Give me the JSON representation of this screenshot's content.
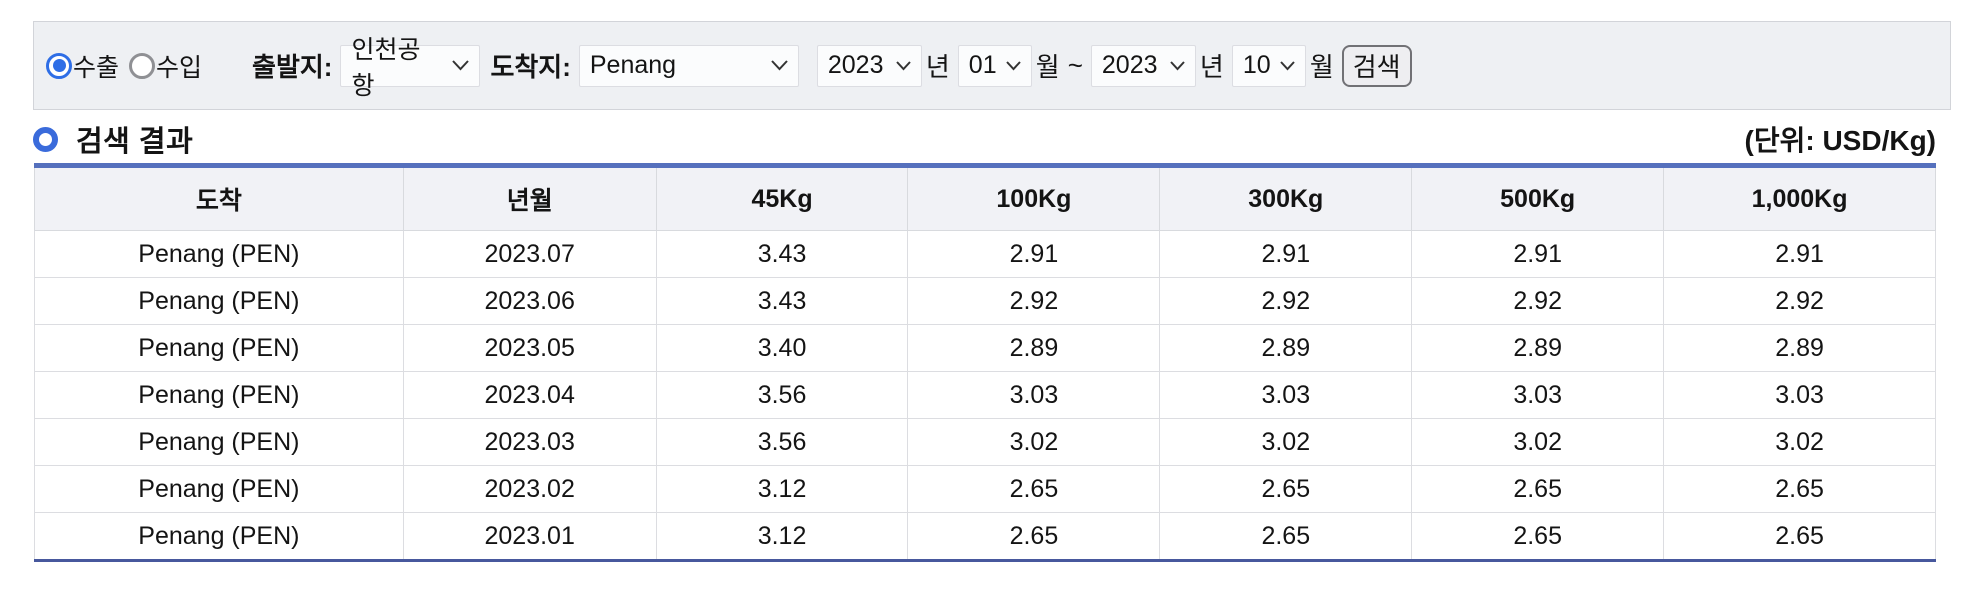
{
  "filters": {
    "trade_options": {
      "export_label": "수출",
      "import_label": "수입",
      "selected": "수출"
    },
    "origin": {
      "label": "출발지:",
      "value": "인천공항"
    },
    "destination": {
      "label": "도착지:",
      "value": "Penang"
    },
    "period": {
      "from_year": "2023",
      "from_month": "01",
      "to_year": "2023",
      "to_month": "10",
      "year_suffix": "년",
      "month_suffix": "월",
      "range_separator": "~"
    },
    "search_button_label": "검색"
  },
  "results_section": {
    "title": "검색 결과",
    "unit_label": "(단위: USD/Kg)"
  },
  "table": {
    "headers": [
      "도착",
      "년월",
      "45Kg",
      "100Kg",
      "300Kg",
      "500Kg",
      "1,000Kg"
    ],
    "col_widths_pct": [
      19.4,
      13.3,
      13.25,
      13.25,
      13.25,
      13.25,
      14.3
    ],
    "rows": [
      [
        "Penang (PEN)",
        "2023.07",
        "3.43",
        "2.91",
        "2.91",
        "2.91",
        "2.91"
      ],
      [
        "Penang (PEN)",
        "2023.06",
        "3.43",
        "2.92",
        "2.92",
        "2.92",
        "2.92"
      ],
      [
        "Penang (PEN)",
        "2023.05",
        "3.40",
        "2.89",
        "2.89",
        "2.89",
        "2.89"
      ],
      [
        "Penang (PEN)",
        "2023.04",
        "3.56",
        "3.03",
        "3.03",
        "3.03",
        "3.03"
      ],
      [
        "Penang (PEN)",
        "2023.03",
        "3.56",
        "3.02",
        "3.02",
        "3.02",
        "3.02"
      ],
      [
        "Penang (PEN)",
        "2023.02",
        "3.12",
        "2.65",
        "2.65",
        "2.65",
        "2.65"
      ],
      [
        "Penang (PEN)",
        "2023.01",
        "3.12",
        "2.65",
        "2.65",
        "2.65",
        "2.65"
      ]
    ]
  },
  "colors": {
    "accent_blue": "#2e6ee6",
    "ring_blue": "#3a6bdb",
    "table_top_border": "#5570bd",
    "table_bottom_border": "#47589d",
    "bar_background": "#eef0f3",
    "header_background": "#f1f2f6"
  }
}
